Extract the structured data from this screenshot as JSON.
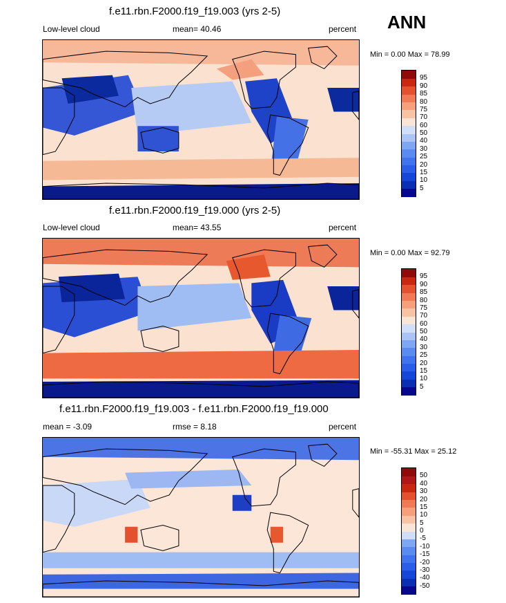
{
  "season": "ANN",
  "panels": [
    {
      "title": "f.e11.rbn.F2000.f19_f19.003 (yrs 2-5)",
      "left": "Low-level cloud",
      "mid": "mean=  40.46",
      "right": "percent",
      "minmax": "Min =   0.00 Max =  78.99"
    },
    {
      "title": "f.e11.rbn.F2000.f19_f19.000 (yrs 2-5)",
      "left": "Low-level cloud",
      "mid": "mean=  43.55",
      "right": "percent",
      "minmax": "Min =   0.00 Max =  92.79"
    },
    {
      "title": "f.e11.rbn.F2000.f19_f19.003 - f.e11.rbn.F2000.f19_f19.000",
      "left": "mean =  -3.09",
      "mid": "rmse =   8.18",
      "right": "percent",
      "minmax": "Min = -55.31 Max =  25.12"
    }
  ],
  "chart_data": [
    {
      "type": "heatmap",
      "title": "f.e11.rbn.F2000.f19_f19.003 (yrs 2-5)",
      "variable": "Low-level cloud",
      "units": "percent",
      "mean": 40.46,
      "min": 0.0,
      "max": 78.99,
      "levels": [
        5,
        10,
        15,
        20,
        25,
        30,
        40,
        50,
        60,
        70,
        75,
        80,
        85,
        90,
        95
      ],
      "colors": [
        "#08088f",
        "#0a2fb3",
        "#1446d8",
        "#2a5ee8",
        "#4173ee",
        "#5a8bf0",
        "#7fa6f2",
        "#a9c4f5",
        "#d0def8",
        "#f9e5d6",
        "#f8c3a4",
        "#f5a07b",
        "#f07a55",
        "#e4512e",
        "#c8280f",
        "#8f0a0a"
      ]
    },
    {
      "type": "heatmap",
      "title": "f.e11.rbn.F2000.f19_f19.000 (yrs 2-5)",
      "variable": "Low-level cloud",
      "units": "percent",
      "mean": 43.55,
      "min": 0.0,
      "max": 92.79,
      "levels": [
        5,
        10,
        15,
        20,
        25,
        30,
        40,
        50,
        60,
        70,
        75,
        80,
        85,
        90,
        95
      ],
      "colors": [
        "#08088f",
        "#0a2fb3",
        "#1446d8",
        "#2a5ee8",
        "#4173ee",
        "#5a8bf0",
        "#7fa6f2",
        "#a9c4f5",
        "#d0def8",
        "#f9e5d6",
        "#f8c3a4",
        "#f5a07b",
        "#f07a55",
        "#e4512e",
        "#c8280f",
        "#8f0a0a"
      ]
    },
    {
      "type": "heatmap",
      "title": "f.e11.rbn.F2000.f19_f19.003 - f.e11.rbn.F2000.f19_f19.000",
      "units": "percent",
      "mean": -3.09,
      "rmse": 8.18,
      "min": -55.31,
      "max": 25.12,
      "levels": [
        -50,
        -40,
        -30,
        -20,
        -15,
        -10,
        -5,
        0,
        5,
        10,
        15,
        20,
        30,
        40,
        50
      ],
      "colors": [
        "#08088f",
        "#0a2fb3",
        "#1446d8",
        "#2a5ee8",
        "#4173ee",
        "#5a8bf0",
        "#7fa6f2",
        "#d0def8",
        "#f9e5d6",
        "#f8c3a4",
        "#f5a07b",
        "#f07a55",
        "#e4512e",
        "#c8280f",
        "#b01818",
        "#8f0a0a"
      ]
    }
  ]
}
